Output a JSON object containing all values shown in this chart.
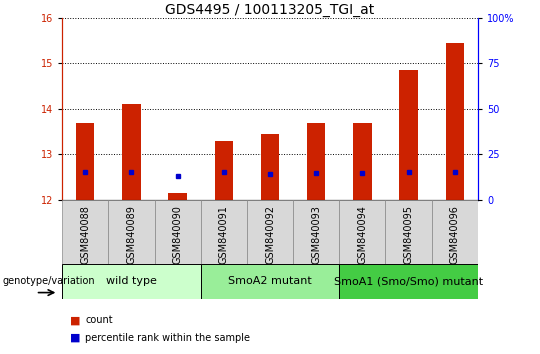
{
  "title": "GDS4495 / 100113205_TGI_at",
  "samples": [
    "GSM840088",
    "GSM840089",
    "GSM840090",
    "GSM840091",
    "GSM840092",
    "GSM840093",
    "GSM840094",
    "GSM840095",
    "GSM840096"
  ],
  "count_values": [
    13.7,
    14.1,
    12.15,
    13.3,
    13.45,
    13.7,
    13.7,
    14.85,
    15.45
  ],
  "percentile_values": [
    12.62,
    12.62,
    12.52,
    12.62,
    12.58,
    12.6,
    12.6,
    12.62,
    12.62
  ],
  "ylim_left": [
    12,
    16
  ],
  "ylim_right": [
    0,
    100
  ],
  "yticks_left": [
    12,
    13,
    14,
    15,
    16
  ],
  "yticks_right": [
    0,
    25,
    50,
    75,
    100
  ],
  "bar_color": "#cc2200",
  "dot_color": "#0000cc",
  "groups": [
    {
      "label": "wild type",
      "start": 0,
      "end": 3,
      "color": "#ccffcc"
    },
    {
      "label": "SmoA2 mutant",
      "start": 3,
      "end": 6,
      "color": "#99ee99"
    },
    {
      "label": "SmoA1 (Smo/Smo) mutant",
      "start": 6,
      "end": 9,
      "color": "#44cc44"
    }
  ],
  "legend_count_label": "count",
  "legend_percentile_label": "percentile rank within the sample",
  "xlabel_genotype": "genotype/variation",
  "title_fontsize": 10,
  "tick_fontsize": 7,
  "label_fontsize": 8,
  "group_label_fontsize": 8,
  "sample_label_fontsize": 7,
  "bg_color": "#d8d8d8",
  "bar_width": 0.4
}
